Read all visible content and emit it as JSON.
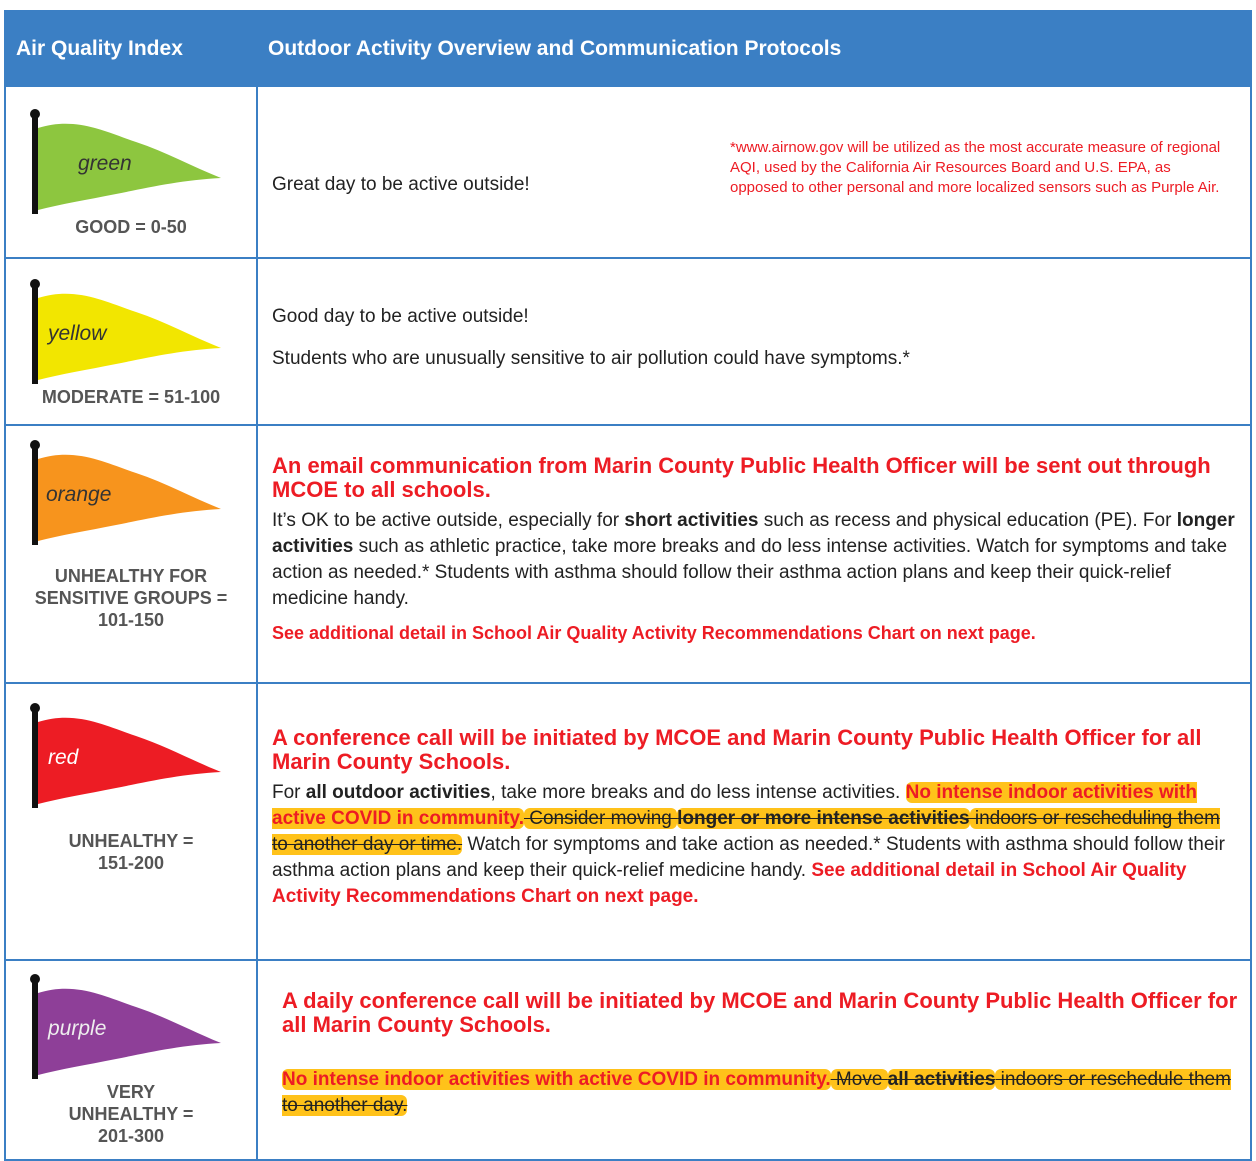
{
  "header": [
    "Air Quality Index",
    "Outdoor Activity Overview and Communication Protocols"
  ],
  "rows": [
    {
      "flag": "green",
      "level": "GOOD = 0-50",
      "paragraphs": [
        [
          "Great day to be active outside!"
        ]
      ],
      "note": "*www.airnow.gov will be utilized as the most accurate measure of regional AQI, used by the California Air Resources Board and U.S. EPA, as opposed to other personal and more localized sensors such as Purple Air."
    },
    {
      "flag": "yellow",
      "level": "MODERATE = 51-100",
      "paragraphs": [
        [
          "Good day to be active outside!"
        ],
        [
          "Students who are unusually sensitive to air pollution could have symptoms.*"
        ]
      ]
    },
    {
      "flag": "orange",
      "level": "UNHEALTHY FOR SENSITIVE GROUPS = 101-150",
      "heading": "An email communication from Marin County Public Health Officer will be sent out through MCOE to all schools.",
      "paragraphs": [
        [
          "It’s OK to be active outside, especially for ",
          "short activities",
          " such as recess and physical education (PE). For ",
          "longer activities",
          " such as athletic practice, take more breaks and do less intense activities. Watch for symptoms and take action as needed.*   Students with asthma should follow their asthma action plans and keep their quick-relief medicine handy."
        ],
        [
          "See additional detail in School Air Quality Activity Recommendations Chart on next page."
        ]
      ]
    },
    {
      "flag": "red",
      "level": "UNHEALTHY = 151-200",
      "heading": "A conference call will be initiated by MCOE and Marin County Public Health Officer for all Marin County Schools.",
      "paragraphs": [
        [
          "For ",
          "all outdoor activities",
          ", take more breaks and do less intense activities. ",
          "No intense indoor activities with active COVID in community.",
          " Consider moving ",
          "longer or more intense activities",
          " indoors or rescheduling them to another day or time.",
          " Watch for symptoms and take action as needed.* Students with asthma should follow their asthma action plans and keep their quick-relief medicine handy. ",
          "See additional detail in School Air Quality Activity Recommendations Chart on next page."
        ]
      ]
    },
    {
      "flag": "purple",
      "level": "VERY UNHEALTHY = 201-300",
      "heading": "A daily conference call will be initiated by MCOE and Marin County Public Health Officer for all Marin County Schools.",
      "paragraphs": [
        [
          "No intense indoor activities with active COVID in community.",
          " Move ",
          "all activities",
          " indoors or reschedule them to another day."
        ]
      ]
    }
  ]
}
